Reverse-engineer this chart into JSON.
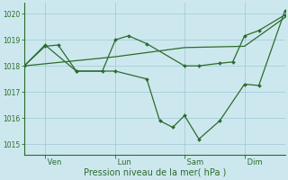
{
  "background_color": "#cce8ee",
  "grid_color": "#9ec8d4",
  "line_color": "#2d6b2d",
  "xlabel": "Pression niveau de la mer( hPa )",
  "ylim": [
    1014.6,
    1020.4
  ],
  "yticks": [
    1015,
    1016,
    1017,
    1018,
    1019,
    1020
  ],
  "x_tick_labels": [
    " Ven",
    " Lun",
    " Sam",
    " Dim"
  ],
  "x_tick_positions": [
    0.08,
    0.35,
    0.615,
    0.845
  ],
  "series_flat": {
    "x": [
      0.0,
      0.35,
      0.615,
      0.845,
      1.0
    ],
    "y": [
      1018.0,
      1018.35,
      1018.7,
      1018.75,
      1019.85
    ]
  },
  "series_upper": {
    "x": [
      0.0,
      0.08,
      0.13,
      0.2,
      0.3,
      0.35,
      0.4,
      0.47,
      0.615,
      0.67,
      0.75,
      0.8,
      0.845,
      0.9,
      1.0
    ],
    "y": [
      1018.0,
      1018.75,
      1018.8,
      1017.8,
      1017.8,
      1019.0,
      1019.15,
      1018.85,
      1018.0,
      1018.0,
      1018.1,
      1018.15,
      1019.15,
      1019.35,
      1019.95
    ]
  },
  "series_lower": {
    "x": [
      0.0,
      0.08,
      0.2,
      0.35,
      0.47,
      0.52,
      0.57,
      0.615,
      0.67,
      0.75,
      0.845,
      0.9,
      1.0
    ],
    "y": [
      1018.0,
      1018.8,
      1017.8,
      1017.8,
      1017.5,
      1015.9,
      1015.65,
      1016.1,
      1015.2,
      1015.9,
      1017.3,
      1017.25,
      1020.1
    ]
  }
}
